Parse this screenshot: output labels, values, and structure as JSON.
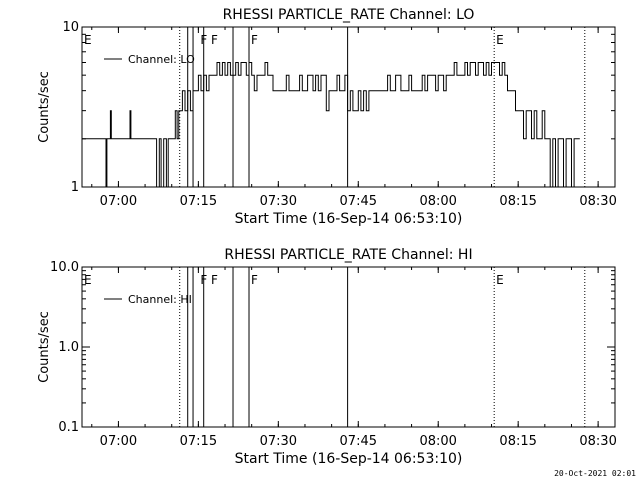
{
  "footer": {
    "stamp": "20-Oct-2021 02:01"
  },
  "chart_data": [
    {
      "type": "line",
      "title": "RHESSI PARTICLE_RATE Channel: LO",
      "xlabel": "Start Time (16-Sep-14 06:53:10)",
      "ylabel": "Counts/sec",
      "yscale": "log",
      "xlim": [
        "06:53:10",
        "08:33:10"
      ],
      "ylim": [
        1,
        10
      ],
      "x_ticks": [
        "07:00",
        "07:15",
        "07:30",
        "07:45",
        "08:00",
        "08:15",
        "08:30"
      ],
      "y_ticks": [
        "1",
        "10"
      ],
      "legend": {
        "position": "top-left",
        "entries": [
          "Channel: LO"
        ]
      },
      "event_labels": [
        {
          "text": "E",
          "x": "06:53:10"
        },
        {
          "text": "F",
          "x": "07:15:00"
        },
        {
          "text": "F",
          "x": "07:17:00"
        },
        {
          "text": "F",
          "x": "07:24:30"
        },
        {
          "text": "E",
          "x": "08:10:30"
        }
      ],
      "dotted_lines": [
        "07:11:30",
        "08:10:30",
        "08:27:30"
      ],
      "solid_lines": [
        "07:13:00",
        "07:14:00",
        "07:16:00",
        "07:21:30",
        "07:24:30",
        "07:43:00"
      ],
      "series": [
        {
          "name": "Channel: LO",
          "x": [
            "06:53:10",
            "06:57:30",
            "06:57:40",
            "06:57:50",
            "06:58:20",
            "06:58:30",
            "06:58:40",
            "07:02:00",
            "07:02:10",
            "07:02:20",
            "07:06:50",
            "07:07:10",
            "07:07:40",
            "07:08:00",
            "07:08:30",
            "07:09:00",
            "07:09:20",
            "07:09:50",
            "07:10:20",
            "07:10:40",
            "07:11:00",
            "07:11:20",
            "07:11:40",
            "07:12:00",
            "07:12:30",
            "07:13:00",
            "07:13:30",
            "07:14:00",
            "07:14:30",
            "07:15:00",
            "07:15:30",
            "07:16:00",
            "07:16:30",
            "07:17:00",
            "07:17:30",
            "07:18:00",
            "07:18:30",
            "07:19:00",
            "07:19:30",
            "07:20:00",
            "07:20:30",
            "07:21:00",
            "07:21:30",
            "07:22:00",
            "07:22:30",
            "07:23:00",
            "07:23:30",
            "07:24:00",
            "07:24:30",
            "07:25:00",
            "07:25:30",
            "07:26:00",
            "07:26:30",
            "07:27:00",
            "07:27:30",
            "07:28:00",
            "07:28:30",
            "07:29:00",
            "07:29:30",
            "07:30:00",
            "07:30:30",
            "07:31:00",
            "07:31:30",
            "07:32:00",
            "07:32:30",
            "07:33:00",
            "07:33:30",
            "07:34:00",
            "07:34:30",
            "07:35:00",
            "07:35:30",
            "07:36:00",
            "07:36:30",
            "07:37:00",
            "07:37:30",
            "07:38:00",
            "07:38:30",
            "07:39:00",
            "07:39:30",
            "07:40:00",
            "07:40:30",
            "07:41:00",
            "07:41:30",
            "07:42:00",
            "07:42:30",
            "07:43:00",
            "07:43:30",
            "07:44:00",
            "07:44:30",
            "07:45:00",
            "07:45:30",
            "07:46:00",
            "07:46:30",
            "07:47:00",
            "07:47:30",
            "07:48:00",
            "07:48:30",
            "07:49:00",
            "07:49:30",
            "07:50:00",
            "07:50:30",
            "07:51:00",
            "07:51:30",
            "07:52:00",
            "07:52:30",
            "07:53:00",
            "07:53:30",
            "07:54:00",
            "07:54:30",
            "07:55:00",
            "07:55:30",
            "07:56:00",
            "07:56:30",
            "07:57:00",
            "07:57:30",
            "07:58:00",
            "07:58:30",
            "07:59:00",
            "07:59:30",
            "08:00:00",
            "08:00:30",
            "08:01:00",
            "08:01:30",
            "08:02:00",
            "08:02:30",
            "08:03:00",
            "08:03:30",
            "08:04:00",
            "08:04:30",
            "08:05:00",
            "08:05:30",
            "08:06:00",
            "08:06:30",
            "08:07:00",
            "08:07:30",
            "08:08:00",
            "08:08:30",
            "08:09:00",
            "08:09:30",
            "08:10:00",
            "08:10:30",
            "08:11:00",
            "08:11:30",
            "08:12:00",
            "08:12:30",
            "08:13:00",
            "08:13:30",
            "08:14:00",
            "08:14:30",
            "08:15:00",
            "08:15:30",
            "08:16:00",
            "08:16:30",
            "08:17:00",
            "08:17:30",
            "08:18:00",
            "08:18:30",
            "08:19:00",
            "08:19:30",
            "08:20:00",
            "08:20:30",
            "08:21:00",
            "08:21:30",
            "08:22:00",
            "08:22:30",
            "08:23:00",
            "08:23:30",
            "08:24:00",
            "08:24:30",
            "08:25:00",
            "08:25:30",
            "08:26:00"
          ],
          "values": [
            2,
            2,
            1,
            2,
            2,
            3,
            2,
            2,
            3,
            2,
            2,
            1,
            2,
            1,
            2,
            1,
            2,
            2,
            2,
            3,
            2,
            3,
            3,
            4,
            3,
            4,
            3,
            4,
            4,
            5,
            4,
            5,
            4,
            5,
            5,
            5,
            6,
            5,
            6,
            5,
            6,
            5,
            5,
            6,
            5,
            6,
            6,
            5,
            6,
            5,
            4,
            5,
            5,
            5,
            6,
            5,
            5,
            4,
            4,
            4,
            4,
            4,
            5,
            4,
            4,
            4,
            4,
            5,
            4,
            4,
            5,
            5,
            4,
            5,
            4,
            5,
            5,
            3,
            4,
            4,
            4,
            5,
            4,
            4,
            5,
            3,
            4,
            3,
            3,
            4,
            3,
            4,
            3,
            4,
            4,
            4,
            4,
            4,
            4,
            4,
            5,
            4,
            4,
            5,
            5,
            4,
            4,
            4,
            5,
            4,
            4,
            4,
            4,
            5,
            4,
            5,
            5,
            5,
            4,
            5,
            5,
            4,
            5,
            5,
            5,
            6,
            5,
            5,
            5,
            6,
            5,
            6,
            6,
            5,
            6,
            6,
            5,
            6,
            5,
            6,
            6,
            6,
            5,
            6,
            5,
            4,
            4,
            4,
            3,
            3,
            3,
            2,
            3,
            3,
            2,
            3,
            2,
            2,
            3,
            2,
            2,
            1,
            2,
            1,
            2,
            2,
            1,
            2,
            2,
            1,
            2,
            2
          ]
        }
      ]
    },
    {
      "type": "line",
      "title": "RHESSI PARTICLE_RATE Channel: HI",
      "xlabel": "Start Time (16-Sep-14 06:53:10)",
      "ylabel": "Counts/sec",
      "yscale": "log",
      "xlim": [
        "06:53:10",
        "08:33:10"
      ],
      "ylim": [
        0.1,
        10
      ],
      "x_ticks": [
        "07:00",
        "07:15",
        "07:30",
        "07:45",
        "08:00",
        "08:15",
        "08:30"
      ],
      "y_ticks": [
        "0.1",
        "1.0",
        "10.0"
      ],
      "legend": {
        "position": "top-left",
        "entries": [
          "Channel: HI"
        ]
      },
      "event_labels": [
        {
          "text": "E",
          "x": "06:53:10"
        },
        {
          "text": "F",
          "x": "07:15:00"
        },
        {
          "text": "F",
          "x": "07:17:00"
        },
        {
          "text": "F",
          "x": "07:24:30"
        },
        {
          "text": "E",
          "x": "08:10:30"
        }
      ],
      "dotted_lines": [
        "07:11:30",
        "08:10:30",
        "08:27:30"
      ],
      "solid_lines": [
        "07:13:00",
        "07:14:00",
        "07:16:00",
        "07:21:30",
        "07:24:30",
        "07:43:00"
      ],
      "series": [
        {
          "name": "Channel: HI",
          "x": [],
          "values": []
        }
      ]
    }
  ]
}
